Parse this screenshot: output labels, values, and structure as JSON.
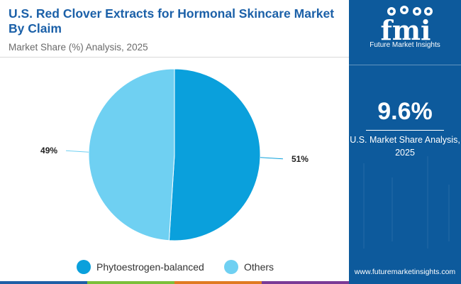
{
  "header": {
    "title": "U.S. Red Clover Extracts for Hormonal Skincare Market By Claim",
    "subtitle": "Market Share (%) Analysis, 2025"
  },
  "colors": {
    "brand": "#1b60a8",
    "panel": "#0d5a9c",
    "series": [
      "#0aa0dc",
      "#6fd0f2"
    ],
    "bottom_bar": [
      "#1e5fa6",
      "#7bbf3a",
      "#e07b22",
      "#7a3a96"
    ]
  },
  "chart_data": {
    "type": "pie",
    "title": "",
    "categories": [
      "Phytoestrogen-balanced",
      "Others"
    ],
    "values": [
      51,
      49
    ],
    "data_labels": [
      "51%",
      "49%"
    ],
    "legend_position": "bottom"
  },
  "panel": {
    "logo_text": "Future Market Insights",
    "stat_value": "9.6%",
    "stat_label": "U.S. Market Share Analysis, 2025",
    "website": "www.futuremarketinsights.com"
  }
}
